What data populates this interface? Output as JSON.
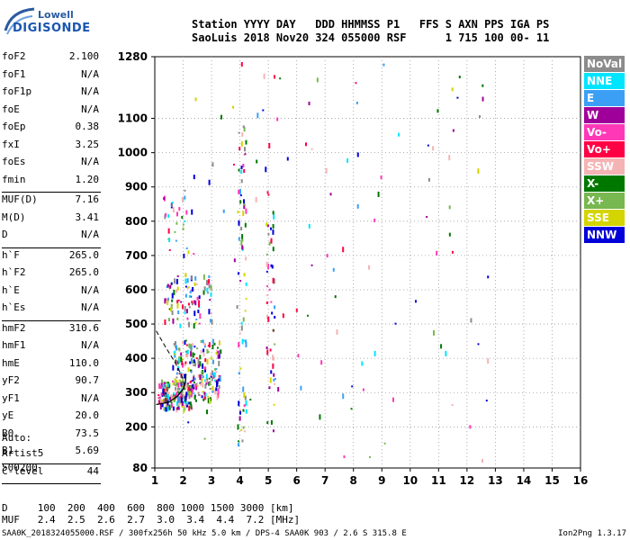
{
  "logo": {
    "line1": "Lowell",
    "line2": "DIGISONDE"
  },
  "header": {
    "line1": "Station YYYY DAY   DDD HHMMSS P1   FFS S AXN PPS IGA PS",
    "line2": "SaoLuis 2018 Nov20 324 055000 RSF      1 715 100 00- 11"
  },
  "params": [
    {
      "name": "foF2",
      "value": "2.100"
    },
    {
      "name": "foF1",
      "value": "N/A"
    },
    {
      "name": "foF1p",
      "value": "N/A"
    },
    {
      "name": "foE",
      "value": "N/A"
    },
    {
      "name": "foEp",
      "value": "0.38"
    },
    {
      "name": "fxI",
      "value": "3.25"
    },
    {
      "name": "foEs",
      "value": "N/A"
    },
    {
      "name": "fmin",
      "value": "1.20"
    },
    {
      "name": "MUF(D)",
      "value": "7.16"
    },
    {
      "name": "M(D)",
      "value": "3.41"
    },
    {
      "name": "D",
      "value": "N/A"
    },
    {
      "name": "h`F",
      "value": "265.0"
    },
    {
      "name": "h`F2",
      "value": "265.0"
    },
    {
      "name": "h`E",
      "value": "N/A"
    },
    {
      "name": "h`Es",
      "value": "N/A"
    },
    {
      "name": "hmF2",
      "value": "310.6"
    },
    {
      "name": "hmF1",
      "value": "N/A"
    },
    {
      "name": "hmE",
      "value": "110.0"
    },
    {
      "name": "yF2",
      "value": "90.7"
    },
    {
      "name": "yF1",
      "value": "N/A"
    },
    {
      "name": "yE",
      "value": "20.0"
    },
    {
      "name": "B0",
      "value": "73.5"
    },
    {
      "name": "B1",
      "value": "5.69"
    },
    {
      "name": "C-level",
      "value": "44"
    }
  ],
  "auto": {
    "line1": "Auto:",
    "line2": "Artist5",
    "line3": "500200"
  },
  "legend": [
    {
      "label": "NoVal",
      "color": "#8c8c8c"
    },
    {
      "label": "NNE",
      "color": "#00e5ff"
    },
    {
      "label": "E",
      "color": "#3ba0f5"
    },
    {
      "label": "W",
      "color": "#a0009a"
    },
    {
      "label": "Vo-",
      "color": "#ff38b8"
    },
    {
      "label": "Vo+",
      "color": "#ff0044"
    },
    {
      "label": "SSW",
      "color": "#f5b4b4"
    },
    {
      "label": "X-",
      "color": "#007800"
    },
    {
      "label": "X+",
      "color": "#78b850"
    },
    {
      "label": "SSE",
      "color": "#d4d400"
    },
    {
      "label": "NNW",
      "color": "#0000d8"
    }
  ],
  "footer": {
    "line1": "D     100  200  400  600  800 1000 1500 3000 [km]",
    "line2": "MUF   2.4  2.5  2.6  2.7  3.0  3.4  4.4  7.2 [MHz]",
    "line3": "SAA0K_2018324055000.RSF / 300fx256h 50 kHz 5.0 km / DPS-4 SAA0K 903 / 2.6 S 315.8 E",
    "line4": "Ion2Png 1.3.17"
  },
  "chart_data": {
    "type": "scatter",
    "title": "",
    "xlabel": "",
    "ylabel": "",
    "xlim": [
      1,
      16
    ],
    "ylim": [
      80,
      1280
    ],
    "x_ticks": [
      "1",
      "2",
      "3",
      "4",
      "5",
      "6",
      "7",
      "8",
      "9",
      "10",
      "11",
      "12",
      "13",
      "14",
      "15",
      "16"
    ],
    "y_ticks": [
      {
        "value": 80,
        "label": "80"
      },
      {
        "value": 200,
        "label": "200"
      },
      {
        "value": 300,
        "label": "300"
      },
      {
        "value": 400,
        "label": "400"
      },
      {
        "value": 500,
        "label": "500"
      },
      {
        "value": 600,
        "label": "600"
      },
      {
        "value": 700,
        "label": "700"
      },
      {
        "value": 800,
        "label": "800"
      },
      {
        "value": 900,
        "label": "900"
      },
      {
        "value": 1000,
        "label": "1000"
      },
      {
        "value": 1100,
        "label": "1100"
      },
      {
        "value": 1280,
        "label": "1280"
      }
    ],
    "grid": true,
    "profile_curve": {
      "name": "electron density profile",
      "points": [
        [
          1.05,
          265
        ],
        [
          1.5,
          272
        ],
        [
          1.8,
          290
        ],
        [
          2.0,
          310
        ],
        [
          2.08,
          330
        ],
        [
          2.1,
          355
        ]
      ]
    },
    "trace_curve": {
      "points": [
        [
          1.05,
          480
        ],
        [
          1.4,
          430
        ],
        [
          1.7,
          390
        ],
        [
          1.95,
          350
        ],
        [
          2.05,
          320
        ]
      ]
    },
    "echo_clusters": [
      {
        "name": "F-trace",
        "x_range": [
          1.1,
          2.3
        ],
        "y_range": [
          255,
          340
        ],
        "count": 180
      },
      {
        "name": "F-spread",
        "x_range": [
          1.6,
          3.3
        ],
        "y_range": [
          280,
          460
        ],
        "count": 220
      },
      {
        "name": "multi-hop",
        "x_range": [
          1.3,
          3.0
        ],
        "y_range": [
          500,
          650
        ],
        "count": 90
      },
      {
        "name": "high-fringe",
        "x_range": [
          1.2,
          2.2
        ],
        "y_range": [
          700,
          900
        ],
        "count": 30
      },
      {
        "name": "strip-4MHz",
        "x_range": [
          3.9,
          4.2
        ],
        "y_range": [
          150,
          1080
        ],
        "count": 70
      },
      {
        "name": "strip-5MHz",
        "x_range": [
          4.9,
          5.2
        ],
        "y_range": [
          150,
          900
        ],
        "count": 50
      },
      {
        "name": "noise",
        "x_range": [
          2.0,
          13.0
        ],
        "y_range": [
          100,
          1270
        ],
        "count": 110
      }
    ]
  }
}
